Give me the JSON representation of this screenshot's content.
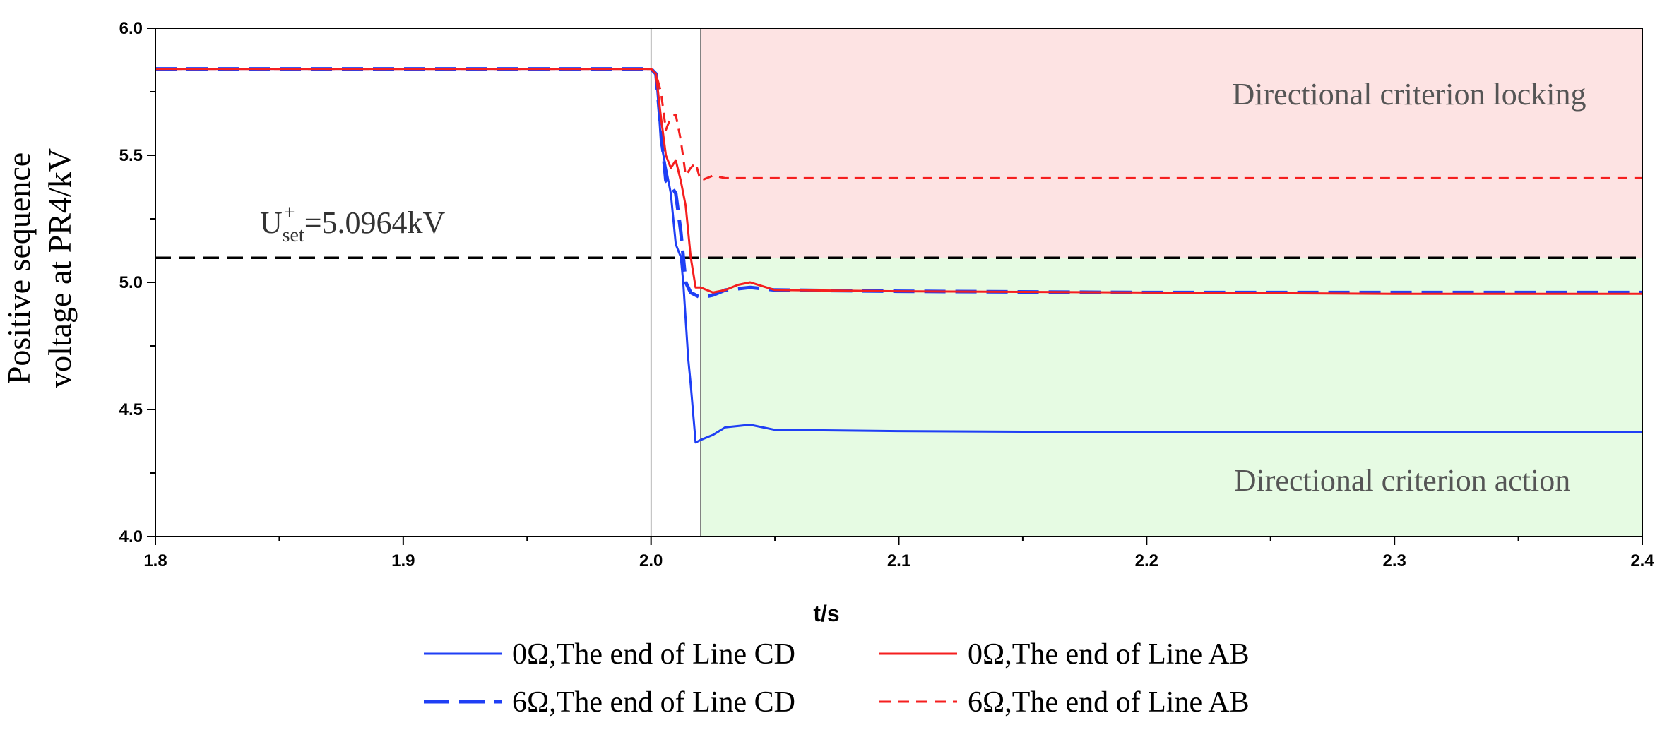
{
  "chart_data": {
    "type": "line",
    "title": "",
    "xlabel": "t/s",
    "ylabel_line1": "Positive sequence",
    "ylabel_line2": "voltage at PR4/kV",
    "xlim": [
      1.8,
      2.4
    ],
    "ylim": [
      4.0,
      6.0
    ],
    "xticks": [
      1.8,
      1.9,
      2.0,
      2.1,
      2.2,
      2.3,
      2.4
    ],
    "xtick_labels": [
      "1.8",
      "1.9",
      "2.0",
      "2.1",
      "2.2",
      "2.3",
      "2.4"
    ],
    "yticks": [
      4.0,
      4.5,
      5.0,
      5.5,
      6.0
    ],
    "ytick_labels": [
      "4.0",
      "4.5",
      "5.0",
      "5.5",
      "6.0"
    ],
    "grid": false,
    "legend_position": "bottom",
    "threshold": {
      "value": 5.0964,
      "label_main": "U",
      "label_sup": "+",
      "label_sub": "set",
      "label_value": "=5.0964kV",
      "color": "#000000"
    },
    "vertical_markers": [
      2.0,
      2.02
    ],
    "regions": [
      {
        "label": "Directional criterion locking",
        "x_from": 2.02,
        "x_to": 2.4,
        "y_from": 5.0964,
        "y_to": 6.0,
        "color": "#fde3e3"
      },
      {
        "label": "Directional criterion action",
        "x_from": 2.02,
        "x_to": 2.4,
        "y_from": 4.0,
        "y_to": 5.0964,
        "color": "#e6fbe3"
      }
    ],
    "series": [
      {
        "name": "0Ω,The end of Line CD",
        "color": "#1f3ff5",
        "dash": "solid",
        "x": [
          1.8,
          2.0,
          2.002,
          2.003,
          2.004,
          2.006,
          2.008,
          2.01,
          2.012,
          2.013,
          2.015,
          2.016,
          2.018,
          2.02,
          2.025,
          2.03,
          2.04,
          2.05,
          2.1,
          2.2,
          2.3,
          2.4
        ],
        "y": [
          5.84,
          5.84,
          5.82,
          5.7,
          5.55,
          5.45,
          5.35,
          5.15,
          5.1,
          5.0,
          4.7,
          4.6,
          4.37,
          4.38,
          4.4,
          4.43,
          4.44,
          4.42,
          4.415,
          4.41,
          4.41,
          4.41
        ]
      },
      {
        "name": "0Ω,The end of Line AB",
        "color": "#f51f1f",
        "dash": "solid",
        "x": [
          1.8,
          2.0,
          2.002,
          2.004,
          2.006,
          2.008,
          2.01,
          2.012,
          2.014,
          2.016,
          2.018,
          2.02,
          2.025,
          2.03,
          2.035,
          2.04,
          2.045,
          2.05,
          2.1,
          2.2,
          2.3,
          2.4
        ],
        "y": [
          5.84,
          5.84,
          5.82,
          5.65,
          5.5,
          5.45,
          5.48,
          5.4,
          5.3,
          5.1,
          4.98,
          4.98,
          4.96,
          4.97,
          4.99,
          5.0,
          4.985,
          4.97,
          4.965,
          4.96,
          4.955,
          4.955
        ]
      },
      {
        "name": "6Ω,The end of Line CD",
        "color": "#1f3ff5",
        "dash": "longdash",
        "x": [
          1.8,
          2.0,
          2.002,
          2.004,
          2.006,
          2.008,
          2.01,
          2.012,
          2.014,
          2.016,
          2.018,
          2.02,
          2.025,
          2.03,
          2.04,
          2.05,
          2.1,
          2.2,
          2.3,
          2.4
        ],
        "y": [
          5.84,
          5.84,
          5.82,
          5.6,
          5.4,
          5.38,
          5.35,
          5.2,
          5.0,
          4.96,
          4.95,
          4.94,
          4.95,
          4.97,
          4.98,
          4.97,
          4.965,
          4.96,
          4.96,
          4.96
        ]
      },
      {
        "name": "6Ω,The end of Line AB",
        "color": "#f51f1f",
        "dash": "shortdash",
        "x": [
          1.8,
          2.0,
          2.002,
          2.004,
          2.006,
          2.008,
          2.01,
          2.012,
          2.014,
          2.016,
          2.018,
          2.02,
          2.025,
          2.03,
          2.05,
          2.1,
          2.2,
          2.3,
          2.4
        ],
        "y": [
          5.84,
          5.84,
          5.82,
          5.75,
          5.6,
          5.65,
          5.66,
          5.56,
          5.42,
          5.45,
          5.47,
          5.4,
          5.42,
          5.41,
          5.41,
          5.41,
          5.41,
          5.41,
          5.41
        ]
      }
    ]
  }
}
